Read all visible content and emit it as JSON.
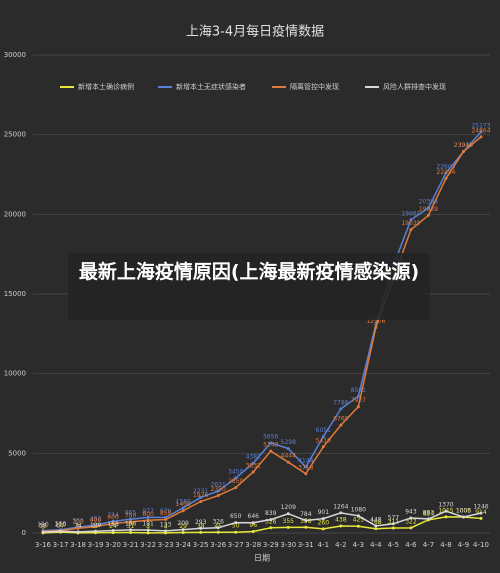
{
  "chart_data": {
    "type": "line",
    "title": "上海3-4月每日疫情数据",
    "x_label": "日期",
    "categories": [
      "3-16",
      "3-17",
      "3-18",
      "3-19",
      "3-20",
      "3-21",
      "3-22",
      "3-23",
      "3-24",
      "3-25",
      "3-26",
      "3-27",
      "3-28",
      "3-29",
      "3-30",
      "3-31",
      "4-1",
      "4-2",
      "4-3",
      "4-4",
      "4-5",
      "4-6",
      "4-7",
      "4-8",
      "4-9",
      "4-10"
    ],
    "series": [
      {
        "name": "新增本土确诊病例",
        "color": "#e8e83a",
        "values": [
          8,
          57,
          8,
          17,
          24,
          31,
          4,
          4,
          29,
          38,
          45,
          50,
          96,
          326,
          355,
          358,
          260,
          438,
          425,
          268,
          311,
          322,
          824,
          1015,
          1006,
          914
        ]
      },
      {
        "name": "新增本土无症状感染者",
        "color": "#5b7fd6",
        "values": [
          150,
          203,
          366,
          492,
          734,
          865,
          977,
          979,
          1580,
          2231,
          2631,
          3450,
          4381,
          5656,
          5298,
          4144,
          6051,
          7788,
          8581,
          13086,
          16766,
          19660,
          20398,
          22609,
          23937,
          25173
        ]
      },
      {
        "name": "隔离管控中发现",
        "color": "#e07a3a",
        "values": [
          100,
          150,
          300,
          400,
          600,
          700,
          800,
          850,
          1400,
          1976,
          2350,
          2850,
          3831,
          5143,
          4444,
          3718,
          5410,
          6769,
          7927,
          12906,
          16000,
          19039,
          19939,
          22254,
          23940,
          24864
        ]
      },
      {
        "name": "风险人群排查中发现",
        "color": "#d8d8d8",
        "values": [
          58,
          110,
          74,
          109,
          158,
          196,
          181,
          133,
          209,
          293,
          326,
          650,
          646,
          839,
          1209,
          784,
          901,
          1264,
          1080,
          448,
          577,
          943,
          883,
          1370,
          1003,
          1246
        ]
      }
    ],
    "ylim": [
      0,
      30000
    ],
    "yticks": [
      0,
      5000,
      10000,
      15000,
      20000,
      25000,
      30000
    ],
    "grid": true,
    "legend": "top"
  },
  "overlay": {
    "text": "最新上海疫情原因(上海最新疫情感染源)"
  }
}
